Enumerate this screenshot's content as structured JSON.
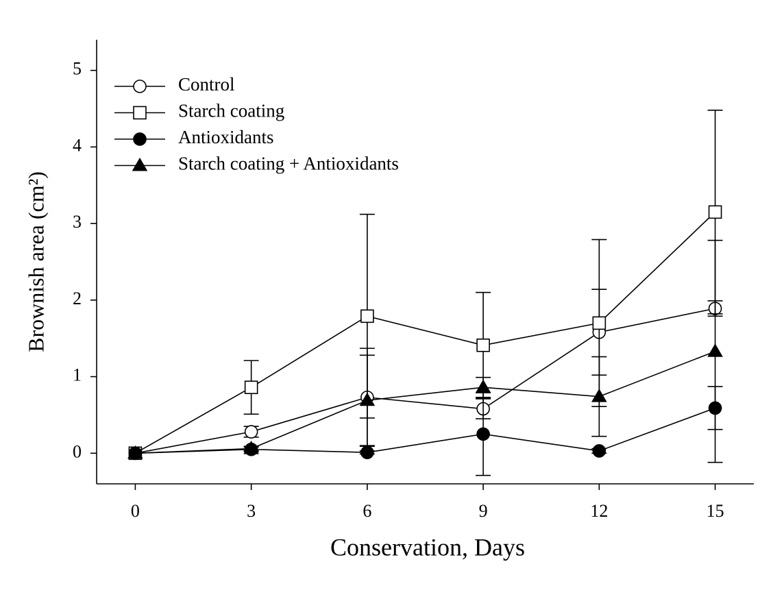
{
  "chart_data": {
    "type": "line",
    "x_label": "Conservation, Days",
    "y_label": "Brownish area (cm²)",
    "x": [
      0,
      3,
      6,
      9,
      12,
      15
    ],
    "xlim": [
      -1,
      16
    ],
    "xticks": [
      0,
      3,
      6,
      9,
      12,
      15
    ],
    "ylim": [
      -0.4,
      5.4
    ],
    "yticks": [
      0,
      1,
      2,
      3,
      4,
      5
    ],
    "legend": "upper left",
    "series": [
      {
        "name": "Control",
        "marker": "circle",
        "filled": false,
        "color": "#000000",
        "values": [
          0,
          0.28,
          0.73,
          0.58,
          1.58,
          1.89
        ],
        "errors": [
          0,
          0.07,
          0.64,
          0.13,
          0.56,
          0.1
        ]
      },
      {
        "name": "Starch coating",
        "marker": "square",
        "filled": false,
        "color": "#000000",
        "values": [
          0,
          0.86,
          1.79,
          1.41,
          1.7,
          3.15
        ],
        "errors": [
          0,
          0.35,
          1.33,
          0.69,
          1.09,
          1.33
        ]
      },
      {
        "name": "Antioxidants",
        "marker": "circle",
        "filled": true,
        "color": "#000000",
        "values": [
          0,
          0.05,
          0.01,
          0.25,
          0.03,
          0.59
        ],
        "errors": [
          0,
          0.03,
          0.02,
          0.54,
          0.03,
          0.28
        ]
      },
      {
        "name": "Starch coating + Antioxidants",
        "marker": "triangle",
        "filled": true,
        "color": "#000000",
        "values": [
          0,
          0.06,
          0.69,
          0.86,
          0.74,
          1.33
        ],
        "errors": [
          0,
          0.03,
          0.59,
          0.13,
          0.52,
          1.45
        ]
      }
    ]
  }
}
